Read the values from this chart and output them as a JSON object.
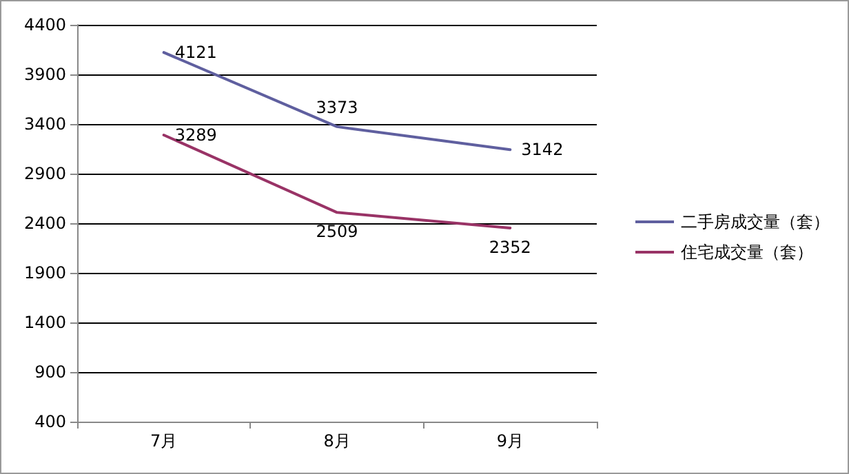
{
  "chart_data": {
    "type": "line",
    "categories": [
      "7月",
      "8月",
      "9月"
    ],
    "series": [
      {
        "name": "二手房成交量（套）",
        "color": "#5f5f9f",
        "values": [
          4121,
          3373,
          3142
        ]
      },
      {
        "name": "住宅成交量（套）",
        "color": "#993366",
        "values": [
          3289,
          2509,
          2352
        ]
      }
    ],
    "ylim": [
      400,
      4400
    ],
    "yticks": [
      400,
      900,
      1400,
      1900,
      2400,
      2900,
      3400,
      3900,
      4400
    ],
    "grid": "y",
    "legend": "right",
    "marker": "none",
    "line_style": "solid",
    "data_labels": true
  }
}
